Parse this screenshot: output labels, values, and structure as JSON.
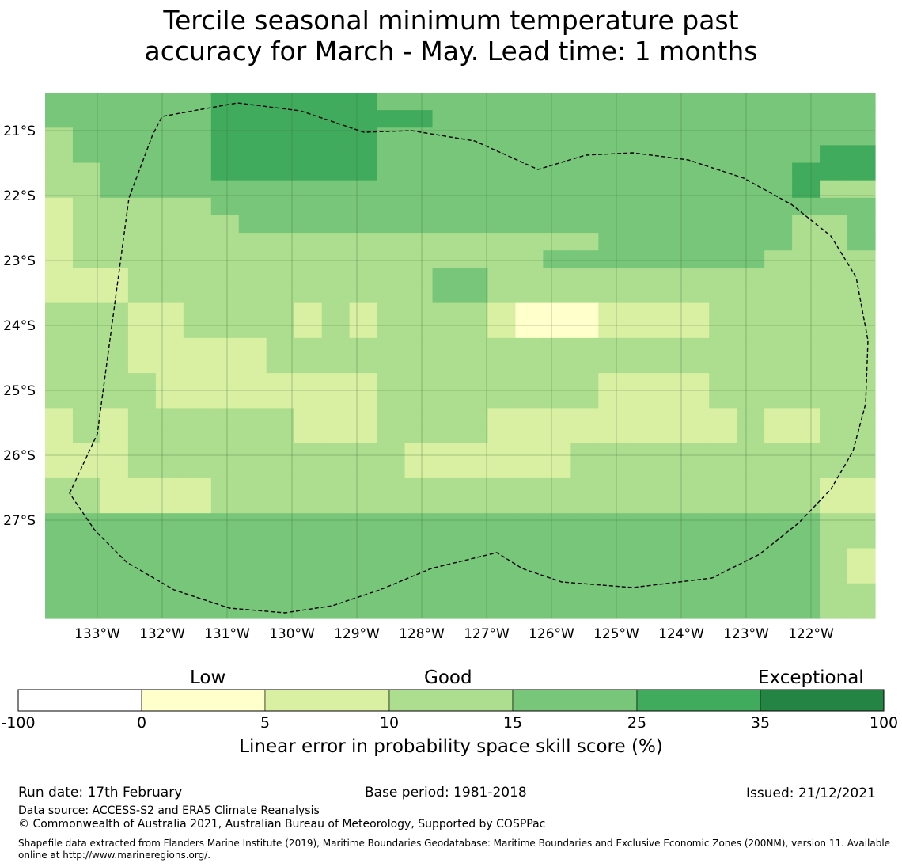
{
  "title_line1": "Tercile seasonal minimum temperature past",
  "title_line2": "accuracy for March - May. Lead time: 1 months",
  "map": {
    "lat_labels": [
      "21°S",
      "22°S",
      "23°S",
      "24°S",
      "25°S",
      "26°S",
      "27°S"
    ],
    "lon_labels": [
      "133°W",
      "132°W",
      "131°W",
      "130°W",
      "129°W",
      "128°W",
      "127°W",
      "126°W",
      "125°W",
      "124°W",
      "123°W",
      "122°W"
    ],
    "grid_note": "rows top to bottom, 1.0-digit class index: 1=0-5, 2=5-10, 3=10-15, 4=15-25, 5=25-35",
    "cells": [
      "444444555555444444444444444444",
      "444444555555554444444444444444",
      "344444555555444444444444444444",
      "344444555555444444444444444455",
      "334444555555444444444444444555",
      "334444444444444444444444444533",
      "233333444444444444444444444444",
      "233333344444444444444444444334",
      "233333333333333333334444444334",
      "233333333333333333444444443333",
      "222333333333334433333333333333",
      "222333333333334433333333333333",
      "333223333232333321112222333333",
      "333223333232333321112222333333",
      "333222223333333333333333333333",
      "333222223333333333333333333333",
      "333322222222333333332222333333",
      "333322222222333333332222333333",
      "232333333222333322222222232233",
      "232333333222333322222222232233",
      "222333333333322222233333333333",
      "222333333333322222233333333333",
      "332222333333333333333333333322",
      "332222333333333333333333333322",
      "444444444444444444444444444433",
      "444444444444444444444444444433",
      "444444444444444444444444444432",
      "444444444444444444444444444432",
      "444444444444444444444444444433",
      "444444444444444444444444444433"
    ],
    "colors": {
      "c0": "#ffffff",
      "c1": "#ffffcc",
      "c2": "#d9f0a3",
      "c3": "#addd8e",
      "c4": "#78c679",
      "c5": "#41ab5d",
      "c6": "#238443"
    }
  },
  "colorbar": {
    "group_labels": [
      "Low",
      "Good",
      "Exceptional"
    ],
    "ticks": [
      "-100",
      "0",
      "5",
      "10",
      "15",
      "25",
      "35",
      "100"
    ],
    "title": "Linear error in probability space skill score (%)"
  },
  "footer": {
    "run_date": "Run date: 17th February",
    "base_period": "Base period: 1981-2018",
    "issued": "Issued: 21/12/2021",
    "data_source": "Data source: ACCESS-S2 and ERA5 Climate Reanalysis",
    "copyright": "© Commonwealth of Australia 2021, Australian Bureau of Meteorology, Supported by COSPPac",
    "shapefile_line1": "Shapefile data extracted from Flanders Marine Institute (2019), Maritime Boundaries Geodatabase: Maritime Boundaries and Exclusive Economic Zones (200NM), version 11. Available",
    "shapefile_line2": "online at http://www.marineregions.org/."
  }
}
